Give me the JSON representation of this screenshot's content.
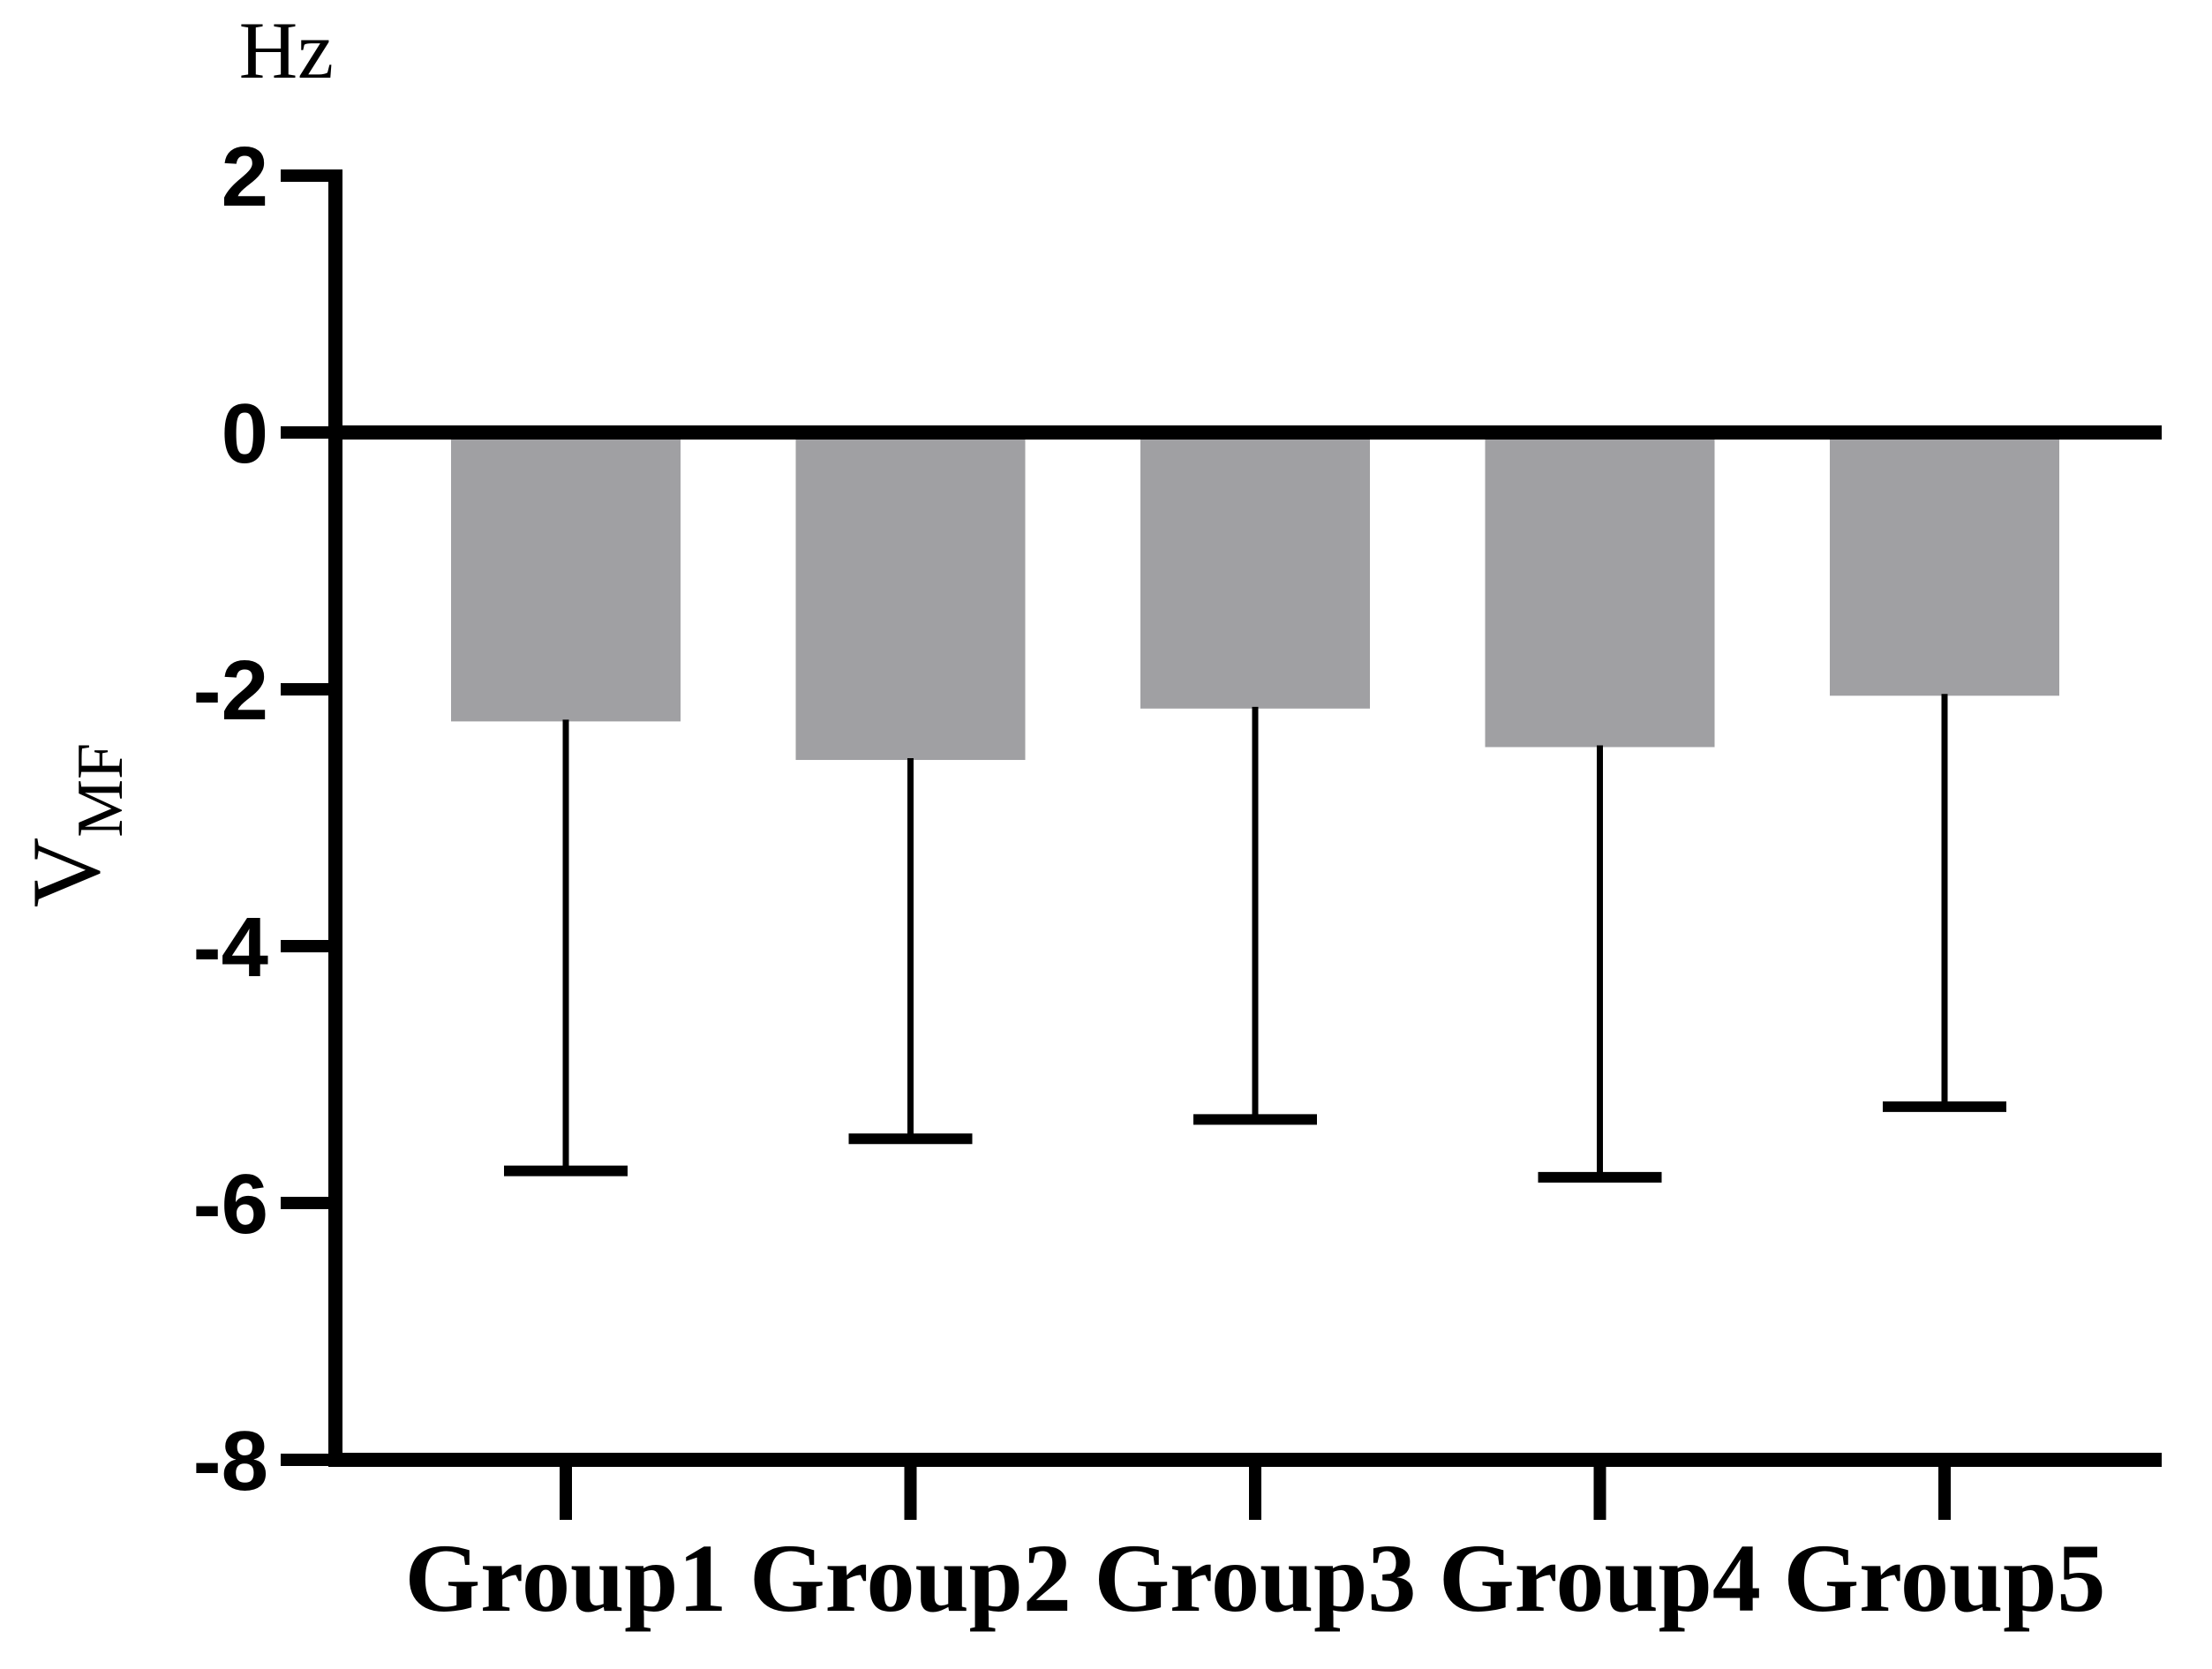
{
  "figure": {
    "background_color": "#ffffff"
  },
  "chart_data": {
    "type": "bar",
    "title": "",
    "unit_label": "Hz",
    "ylabel": {
      "base": "V",
      "subscript": "MF"
    },
    "xlabel": "",
    "categories": [
      "Group1",
      "Group2",
      "Group3",
      "Group4",
      "Group5"
    ],
    "values": [
      -2.25,
      -2.55,
      -2.15,
      -2.45,
      -2.05
    ],
    "error_bars": {
      "direction": "lower",
      "lengths": [
        3.5,
        2.95,
        3.2,
        3.35,
        3.2
      ],
      "tip_values": [
        -5.75,
        -5.5,
        -5.35,
        -5.8,
        -5.25
      ]
    },
    "y_ticks": [
      2,
      0,
      -2,
      -4,
      -6,
      -8
    ],
    "y_tick_labels": [
      "2",
      "0",
      "-2",
      "-4",
      "-6",
      "-8"
    ],
    "ylim": [
      -8,
      2
    ],
    "zero_baseline": true,
    "grid": false,
    "legend": false,
    "colors": {
      "bar_fill": "#a0a0a3",
      "axis": "#000000",
      "error_bar": "#000000",
      "text": "#000000"
    }
  }
}
